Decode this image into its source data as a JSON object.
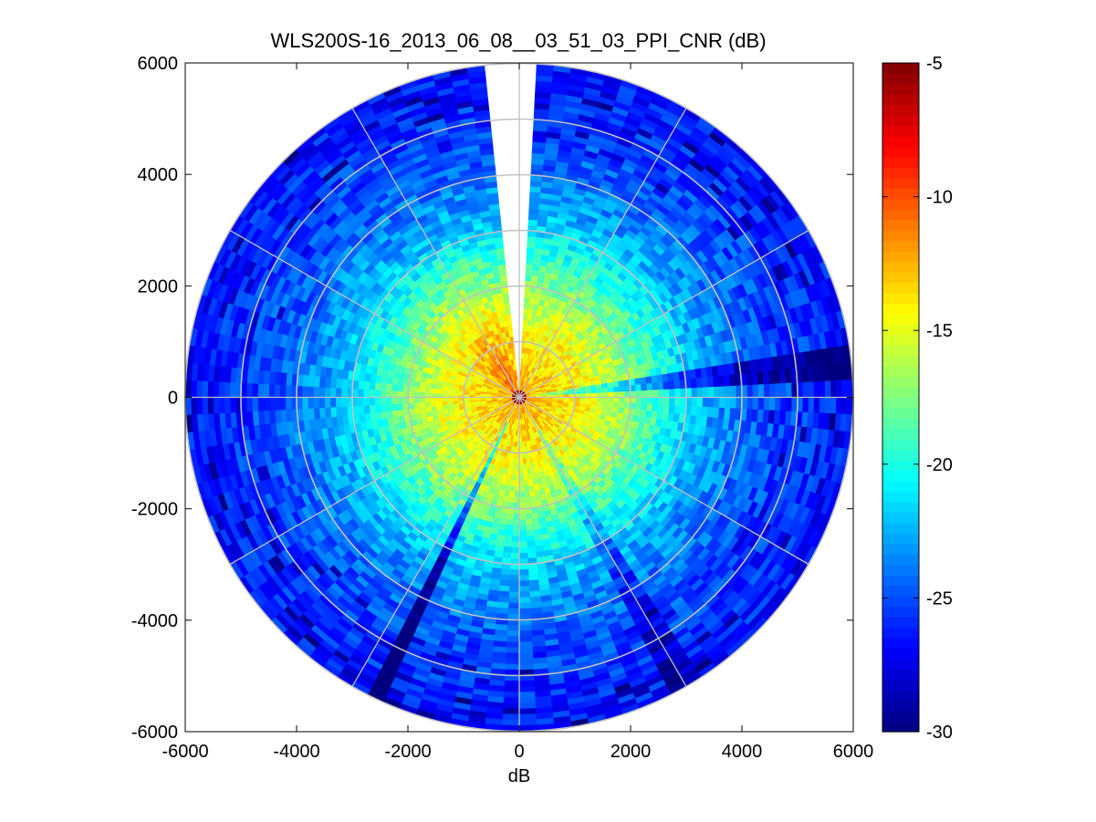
{
  "chart_data": {
    "type": "heatmap",
    "subtype": "polar-ppi",
    "title": "WLS200S-16_2013_06_08__03_51_03_PPI_CNR (dB)",
    "xlabel": "dB",
    "ylabel": "",
    "xlim": [
      -6000,
      6000
    ],
    "ylim": [
      -6000,
      6000
    ],
    "x_ticks": [
      "-6000",
      "-4000",
      "-2000",
      "0",
      "2000",
      "4000",
      "6000"
    ],
    "y_ticks": [
      "6000",
      "4000",
      "2000",
      "0",
      "-2000",
      "-4000",
      "-6000"
    ],
    "range_max": 6000,
    "range_min": 100,
    "range_rings": [
      1000,
      2000,
      3000,
      4000,
      5000,
      6000
    ],
    "radial_lines_deg": [
      0,
      30,
      60,
      90,
      120,
      150,
      180,
      210,
      240,
      270,
      300,
      330
    ],
    "grid": true,
    "missing_sector_deg": [
      355,
      364
    ],
    "colorbar": {
      "colormap": "jet",
      "clim": [
        -30,
        -5
      ],
      "ticks": [
        "-5",
        "-10",
        "-15",
        "-20",
        "-25",
        "-30"
      ],
      "location": "right"
    },
    "cnr_profile_by_range": [
      {
        "range": 0,
        "value": -12
      },
      {
        "range": 600,
        "value": -13.5
      },
      {
        "range": 1200,
        "value": -14.5
      },
      {
        "range": 1800,
        "value": -16.5
      },
      {
        "range": 2500,
        "value": -19.5
      },
      {
        "range": 3300,
        "value": -22.5
      },
      {
        "range": 4200,
        "value": -24.5
      },
      {
        "range": 5000,
        "value": -25.5
      },
      {
        "range": 6000,
        "value": -26.5
      }
    ],
    "azimuthal_features": [
      {
        "name": "warm sector",
        "center_deg": 330,
        "width_deg": 50,
        "offset_db": 2.5
      },
      {
        "name": "low-CNR east sector",
        "center_deg": 84,
        "width_deg": 9,
        "offset_db": -5
      },
      {
        "name": "low-CNR ray",
        "center_deg": 206,
        "width_deg": 4,
        "offset_db": -7
      },
      {
        "name": "low-CNR ray",
        "center_deg": 150,
        "width_deg": 5,
        "offset_db": -4
      }
    ]
  },
  "colors": {
    "grid": "#c0c0c0",
    "axes": "#000000",
    "background": "#ffffff"
  }
}
